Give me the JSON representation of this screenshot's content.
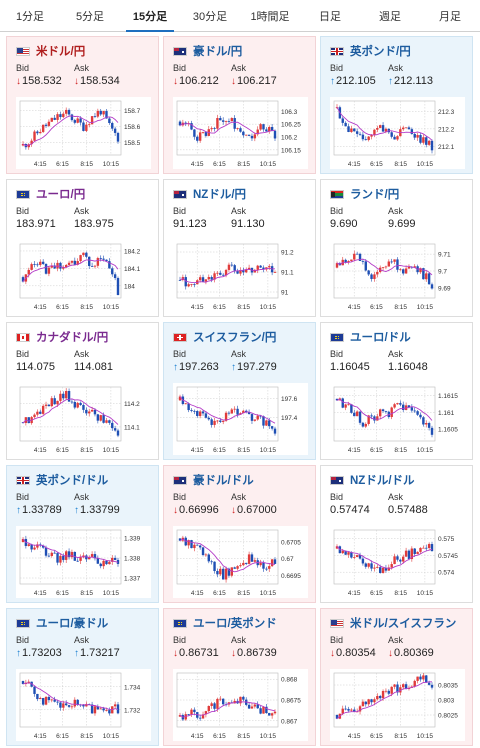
{
  "tabs": [
    {
      "label": "1分足",
      "active": false
    },
    {
      "label": "5分足",
      "active": false
    },
    {
      "label": "15分足",
      "active": true
    },
    {
      "label": "30分足",
      "active": false
    },
    {
      "label": "1時間足",
      "active": false
    },
    {
      "label": "日足",
      "active": false
    },
    {
      "label": "週足",
      "active": false
    },
    {
      "label": "月足",
      "active": false
    }
  ],
  "colors": {
    "up_candle": "#e03b3b",
    "down_candle": "#1f4fb4",
    "ma_line": "#b43cc8",
    "down_arrow": "#d02020",
    "up_arrow": "#1c7fd0",
    "down_bg": "#fdeff0",
    "up_bg": "#eaf4fb"
  },
  "cards": [
    {
      "pair": "米ドル/円",
      "flag": "us",
      "bid_label": "Bid",
      "ask_label": "Ask",
      "bid": "158.532",
      "ask": "158.534",
      "dir": "down",
      "name_color": "red",
      "chart_data": {
        "type": "candlestick",
        "x_ticks": [
          "4:15",
          "6:15",
          "8:15",
          "10:15"
        ],
        "y_ticks": [
          "158.7",
          "158.6",
          "158.5"
        ],
        "ylim": [
          158.42,
          158.76
        ],
        "trend": [
          158.48,
          158.52,
          158.58,
          158.62,
          158.66,
          158.68,
          158.64,
          158.6,
          158.66,
          158.7,
          158.6,
          158.53
        ]
      }
    },
    {
      "pair": "豪ドル/円",
      "flag": "au",
      "bid_label": "Bid",
      "ask_label": "Ask",
      "bid": "106.212",
      "ask": "106.217",
      "dir": "down",
      "name_color": "blue",
      "chart_data": {
        "type": "candlestick",
        "x_ticks": [
          "4:15",
          "6:15",
          "8:15",
          "10:15"
        ],
        "y_ticks": [
          "106.3",
          "106.25",
          "106.2",
          "106.15"
        ],
        "ylim": [
          106.13,
          106.34
        ],
        "trend": [
          106.26,
          106.24,
          106.2,
          106.22,
          106.25,
          106.27,
          106.26,
          106.23,
          106.2,
          106.24,
          106.23,
          106.21
        ]
      }
    },
    {
      "pair": "英ポンド/円",
      "flag": "gb",
      "bid_label": "Bid",
      "ask_label": "Ask",
      "bid": "212.105",
      "ask": "212.113",
      "dir": "up",
      "name_color": "blue",
      "chart_data": {
        "type": "candlestick",
        "x_ticks": [
          "4:15",
          "6:15",
          "8:15",
          "10:15"
        ],
        "y_ticks": [
          "212.3",
          "212.2",
          "212.1"
        ],
        "ylim": [
          212.05,
          212.36
        ],
        "trend": [
          212.32,
          212.22,
          212.16,
          212.14,
          212.18,
          212.22,
          212.18,
          212.16,
          212.2,
          212.16,
          212.14,
          212.1
        ]
      }
    },
    {
      "pair": "ユーロ/円",
      "flag": "eu",
      "bid_label": "Bid",
      "ask_label": "Ask",
      "bid": "183.971",
      "ask": "183.975",
      "dir": "flat",
      "name_color": "purple",
      "chart_data": {
        "type": "candlestick",
        "x_ticks": [
          "4:15",
          "6:15",
          "8:15",
          "10:15"
        ],
        "y_ticks": [
          "184.2",
          "184.1",
          "184"
        ],
        "ylim": [
          183.93,
          184.24
        ],
        "trend": [
          184.05,
          184.1,
          184.12,
          184.08,
          184.13,
          184.1,
          184.14,
          184.18,
          184.1,
          184.16,
          184.12,
          183.97
        ]
      }
    },
    {
      "pair": "NZドル/円",
      "flag": "nz",
      "bid_label": "Bid",
      "ask_label": "Ask",
      "bid": "91.123",
      "ask": "91.130",
      "dir": "flat",
      "name_color": "blue",
      "chart_data": {
        "type": "candlestick",
        "x_ticks": [
          "4:15",
          "6:15",
          "8:15",
          "10:15"
        ],
        "y_ticks": [
          "91.2",
          "91.1",
          "91"
        ],
        "ylim": [
          90.97,
          91.24
        ],
        "trend": [
          91.06,
          91.04,
          91.05,
          91.07,
          91.08,
          91.1,
          91.12,
          91.09,
          91.11,
          91.13,
          91.12,
          91.12
        ]
      }
    },
    {
      "pair": "ランド/円",
      "flag": "za",
      "bid_label": "Bid",
      "ask_label": "Ask",
      "bid": "9.690",
      "ask": "9.699",
      "dir": "flat",
      "name_color": "blue",
      "chart_data": {
        "type": "candlestick",
        "x_ticks": [
          "4:15",
          "6:15",
          "8:15",
          "10:15"
        ],
        "y_ticks": [
          "9.71",
          "9.7",
          "9.69"
        ],
        "ylim": [
          9.684,
          9.716
        ],
        "trend": [
          9.702,
          9.708,
          9.71,
          9.704,
          9.698,
          9.702,
          9.706,
          9.703,
          9.7,
          9.702,
          9.698,
          9.692
        ]
      }
    },
    {
      "pair": "カナダドル/円",
      "flag": "ca",
      "bid_label": "Bid",
      "ask_label": "Ask",
      "bid": "114.075",
      "ask": "114.081",
      "dir": "flat",
      "name_color": "purple",
      "chart_data": {
        "type": "candlestick",
        "x_ticks": [
          "4:15",
          "6:15",
          "8:15",
          "10:15"
        ],
        "y_ticks": [
          "114.2",
          "114.1"
        ],
        "ylim": [
          114.04,
          114.27
        ],
        "trend": [
          114.12,
          114.14,
          114.16,
          114.2,
          114.22,
          114.24,
          114.2,
          114.18,
          114.16,
          114.14,
          114.12,
          114.08
        ]
      }
    },
    {
      "pair": "スイスフラン/円",
      "flag": "ch",
      "bid_label": "Bid",
      "ask_label": "Ask",
      "bid": "197.263",
      "ask": "197.279",
      "dir": "up",
      "name_color": "blue",
      "chart_data": {
        "type": "candlestick",
        "x_ticks": [
          "4:15",
          "6:15",
          "8:15",
          "10:15"
        ],
        "y_ticks": [
          "197.6",
          "197.4"
        ],
        "ylim": [
          197.15,
          197.72
        ],
        "trend": [
          197.58,
          197.52,
          197.44,
          197.38,
          197.36,
          197.4,
          197.46,
          197.44,
          197.4,
          197.38,
          197.33,
          197.27
        ]
      }
    },
    {
      "pair": "ユーロ/ドル",
      "flag": "eu",
      "bid_label": "Bid",
      "ask_label": "Ask",
      "bid": "1.16045",
      "ask": "1.16048",
      "dir": "flat",
      "name_color": "blue",
      "chart_data": {
        "type": "candlestick",
        "x_ticks": [
          "4:15",
          "6:15",
          "8:15",
          "10:15"
        ],
        "y_ticks": [
          "1.1615",
          "1.161",
          "1.1605"
        ],
        "ylim": [
          1.16015,
          1.16175
        ],
        "trend": [
          1.1614,
          1.1612,
          1.161,
          1.1607,
          1.1608,
          1.1611,
          1.1609,
          1.1612,
          1.1611,
          1.1609,
          1.1607,
          1.16045
        ]
      }
    },
    {
      "pair": "英ポンド/ドル",
      "flag": "gb",
      "bid_label": "Bid",
      "ask_label": "Ask",
      "bid": "1.33789",
      "ask": "1.33799",
      "dir": "up",
      "name_color": "blue",
      "chart_data": {
        "type": "candlestick",
        "x_ticks": [
          "4:15",
          "6:15",
          "8:15",
          "10:15"
        ],
        "y_ticks": [
          "1.339",
          "1.338",
          "1.337"
        ],
        "ylim": [
          1.3367,
          1.3394
        ],
        "trend": [
          1.3388,
          1.3386,
          1.3384,
          1.3381,
          1.338,
          1.3382,
          1.3381,
          1.3379,
          1.338,
          1.3378,
          1.3377,
          1.3379
        ]
      }
    },
    {
      "pair": "豪ドル/ドル",
      "flag": "au",
      "bid_label": "Bid",
      "ask_label": "Ask",
      "bid": "0.66996",
      "ask": "0.67000",
      "dir": "down",
      "name_color": "blue",
      "chart_data": {
        "type": "candlestick",
        "x_ticks": [
          "4:15",
          "6:15",
          "8:15",
          "10:15"
        ],
        "y_ticks": [
          "0.6705",
          "0.67",
          "0.6695"
        ],
        "ylim": [
          0.66925,
          0.67085
        ],
        "trend": [
          0.6706,
          0.6705,
          0.6703,
          0.67,
          0.6697,
          0.6695,
          0.6697,
          0.6699,
          0.67,
          0.6699,
          0.6698,
          0.66996
        ]
      }
    },
    {
      "pair": "NZドル/ドル",
      "flag": "nz",
      "bid_label": "Bid",
      "ask_label": "Ask",
      "bid": "0.57474",
      "ask": "0.57488",
      "dir": "flat",
      "name_color": "blue",
      "chart_data": {
        "type": "candlestick",
        "x_ticks": [
          "4:15",
          "6:15",
          "8:15",
          "10:15"
        ],
        "y_ticks": [
          "0.575",
          "0.5745",
          "0.574"
        ],
        "ylim": [
          0.57365,
          0.57525
        ],
        "trend": [
          0.5747,
          0.5746,
          0.5744,
          0.5743,
          0.5741,
          0.574,
          0.5742,
          0.5744,
          0.5745,
          0.5746,
          0.5747,
          0.57474
        ]
      }
    },
    {
      "pair": "ユーロ/豪ドル",
      "flag": "eu",
      "bid_label": "Bid",
      "ask_label": "Ask",
      "bid": "1.73203",
      "ask": "1.73217",
      "dir": "up",
      "name_color": "blue",
      "chart_data": {
        "type": "candlestick",
        "x_ticks": [
          "4:15",
          "6:15",
          "8:15",
          "10:15"
        ],
        "y_ticks": [
          "1.734",
          "1.732"
        ],
        "ylim": [
          1.7305,
          1.7352
        ],
        "trend": [
          1.7345,
          1.7338,
          1.733,
          1.7326,
          1.7324,
          1.7322,
          1.7325,
          1.7322,
          1.7321,
          1.7322,
          1.7321,
          1.73203
        ]
      }
    },
    {
      "pair": "ユーロ/英ポンド",
      "flag": "eu",
      "bid_label": "Bid",
      "ask_label": "Ask",
      "bid": "0.86731",
      "ask": "0.86739",
      "dir": "down",
      "name_color": "blue",
      "chart_data": {
        "type": "candlestick",
        "x_ticks": [
          "4:15",
          "6:15",
          "8:15",
          "10:15"
        ],
        "y_ticks": [
          "0.868",
          "0.8675",
          "0.867"
        ],
        "ylim": [
          0.86685,
          0.86815
        ],
        "trend": [
          0.8671,
          0.8672,
          0.8671,
          0.8673,
          0.8674,
          0.8675,
          0.8674,
          0.8675,
          0.8674,
          0.8673,
          0.8672,
          0.86731
        ]
      }
    },
    {
      "pair": "米ドル/スイスフラン",
      "flag": "us",
      "bid_label": "Bid",
      "ask_label": "Ask",
      "bid": "0.80354",
      "ask": "0.80369",
      "dir": "down",
      "name_color": "blue",
      "chart_data": {
        "type": "candlestick",
        "x_ticks": [
          "4:15",
          "6:15",
          "8:15",
          "10:15"
        ],
        "y_ticks": [
          "0.8035",
          "0.803",
          "0.8025"
        ],
        "ylim": [
          0.8021,
          0.8039
        ],
        "trend": [
          0.8025,
          0.8026,
          0.8027,
          0.8029,
          0.803,
          0.8031,
          0.8033,
          0.8034,
          0.8035,
          0.8036,
          0.8037,
          0.80354
        ]
      }
    }
  ]
}
